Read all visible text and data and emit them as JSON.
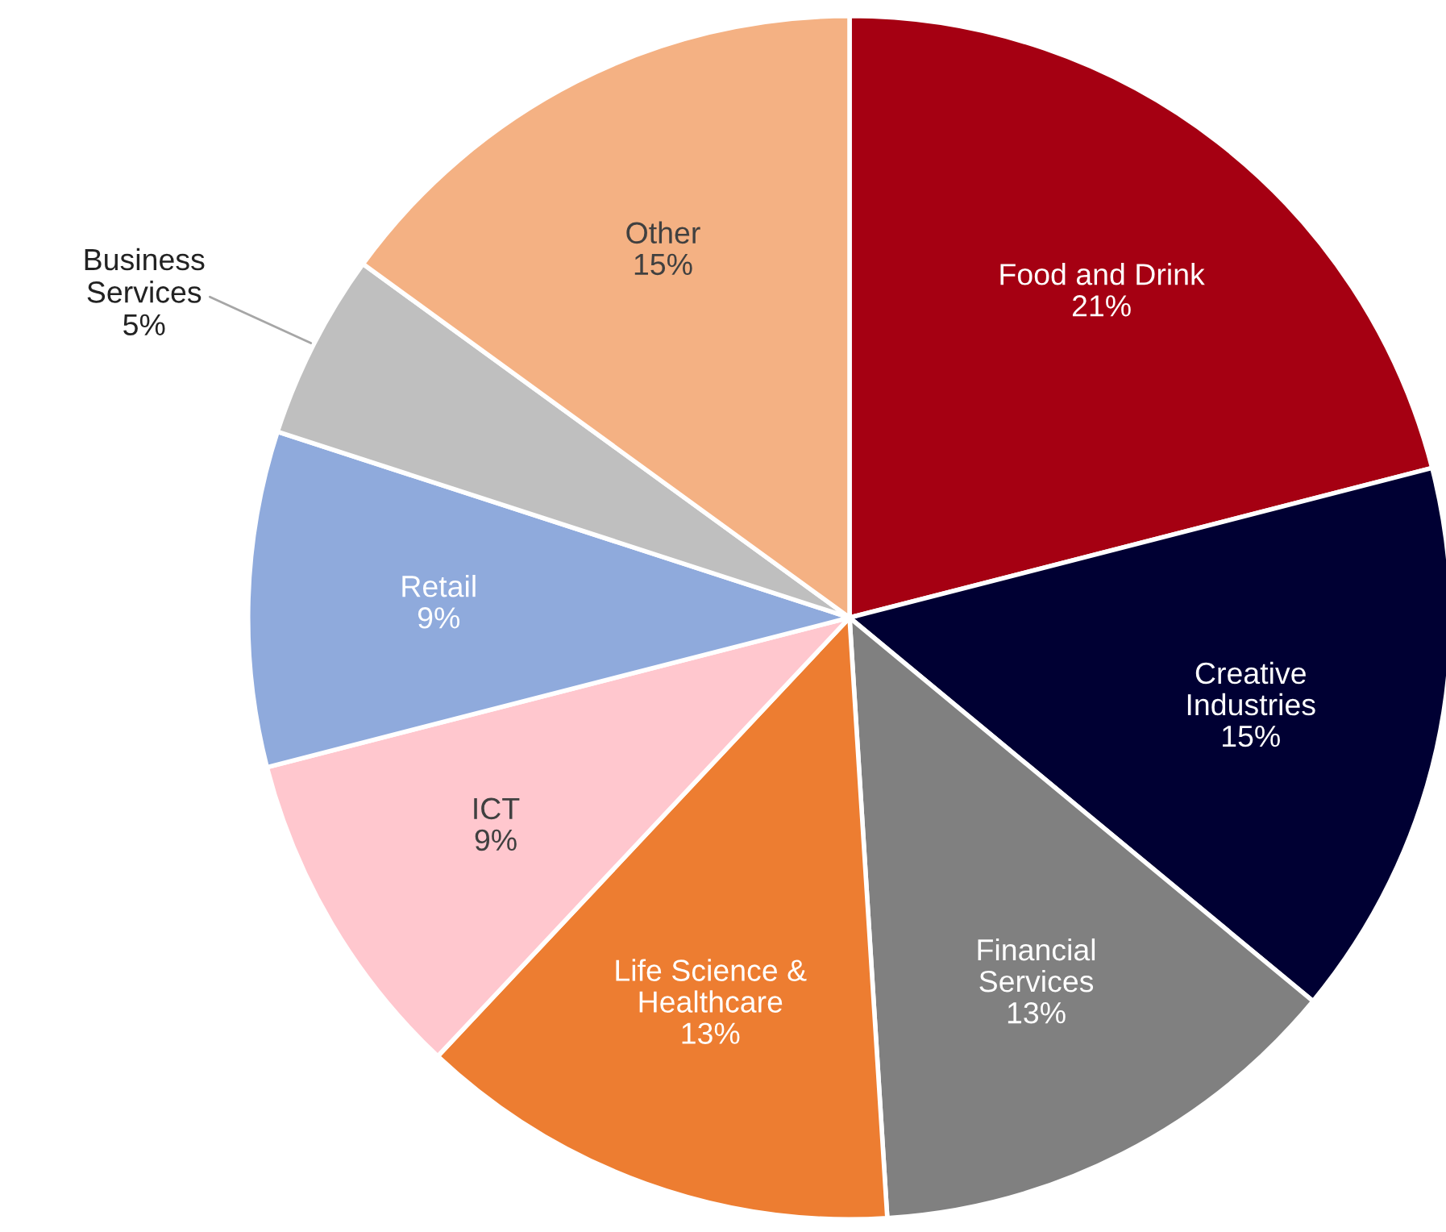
{
  "chart_data": {
    "type": "pie",
    "categories": [
      "Food and Drink",
      "Creative\nIndustries",
      "Financial\nServices",
      "Life Science &\nHealthcare",
      "ICT",
      "Retail",
      "Business\nServices",
      "Other"
    ],
    "values": [
      21,
      15,
      13,
      13,
      9,
      9,
      5,
      15
    ],
    "value_labels": [
      "21%",
      "15%",
      "13%",
      "13%",
      "9%",
      "9%",
      "5%",
      "15%"
    ],
    "colors": [
      "#a50012",
      "#000033",
      "#808080",
      "#ed7d31",
      "#ffc7ce",
      "#8faadc",
      "#bfbfbf",
      "#f4b183"
    ],
    "legend": false
  }
}
